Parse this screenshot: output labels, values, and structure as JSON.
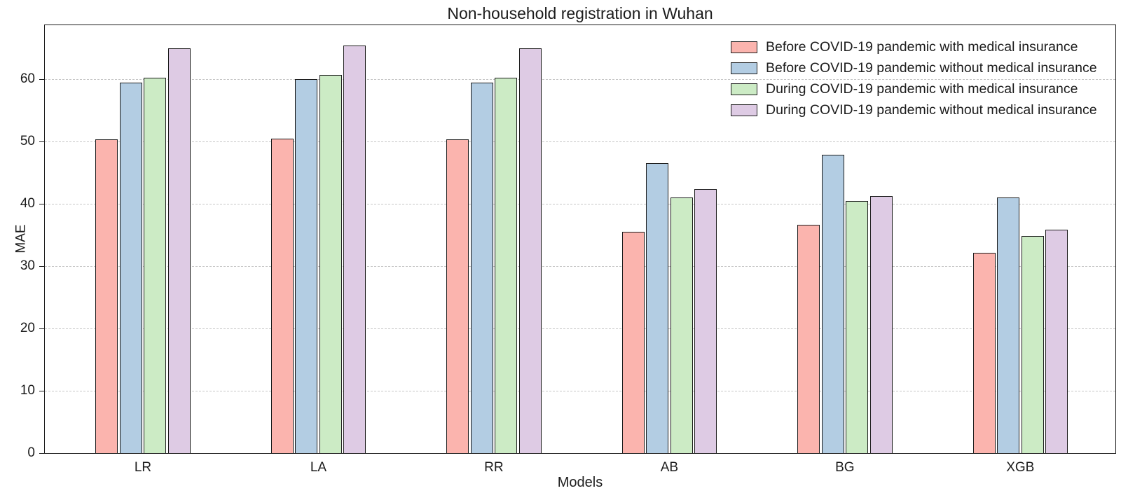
{
  "chart_data": {
    "type": "bar",
    "title": "Non-household registration in Wuhan",
    "xlabel": "Models",
    "ylabel": "MAE",
    "categories": [
      "LR",
      "LA",
      "RR",
      "AB",
      "BG",
      "XGB"
    ],
    "series": [
      {
        "name": "Before COVID-19 pandemic with medical insurance",
        "color": "#fbb4ae",
        "values": [
          50.3,
          50.5,
          50.3,
          35.5,
          36.6,
          32.2
        ]
      },
      {
        "name": "Before COVID-19 pandemic without medical insurance",
        "color": "#b3cde3",
        "values": [
          59.5,
          60.0,
          59.5,
          46.5,
          47.9,
          41.0
        ]
      },
      {
        "name": "During COVID-19 pandemic with medical insurance",
        "color": "#ccebc5",
        "values": [
          60.3,
          60.7,
          60.3,
          41.0,
          40.5,
          34.9
        ]
      },
      {
        "name": "During COVID-19 pandemic without medical insurance",
        "color": "#decbe4",
        "values": [
          65.0,
          65.4,
          65.0,
          42.4,
          41.3,
          35.9
        ]
      }
    ],
    "yticks": [
      0,
      10,
      20,
      30,
      40,
      50,
      60
    ],
    "ylim": [
      0,
      68.9
    ],
    "grid": "horizontal-dashed",
    "legend_position": "top-right",
    "bar_edge_color": "#1c1c1c",
    "gridline_color": "#c6c6c6"
  }
}
